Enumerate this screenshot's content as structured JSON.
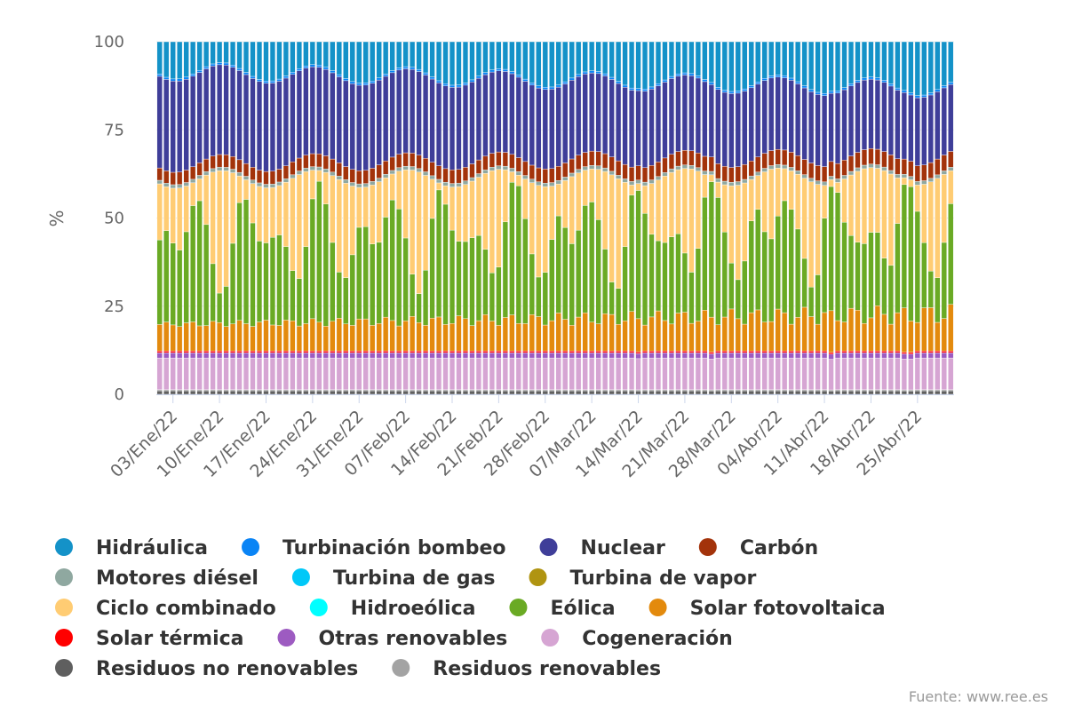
{
  "chart_data": {
    "type": "bar",
    "stacked": true,
    "percent": true,
    "ylabel": "%",
    "ylim": [
      0,
      100
    ],
    "yticks": [
      0,
      25,
      50,
      75,
      100
    ],
    "grid": true,
    "legend_placement": "bottom",
    "credits": "Fuente: www.ree.es",
    "x_tick_labels": [
      "03/Ene/22",
      "10/Ene/22",
      "17/Ene/22",
      "24/Ene/22",
      "31/Ene/22",
      "07/Feb/22",
      "14/Feb/22",
      "21/Feb/22",
      "28/Feb/22",
      "07/Mar/22",
      "14/Mar/22",
      "21/Mar/22",
      "28/Mar/22",
      "04/Abr/22",
      "11/Abr/22",
      "18/Abr/22",
      "25/Abr/22"
    ],
    "x_tick_day_index": [
      2,
      9,
      16,
      23,
      30,
      37,
      44,
      51,
      58,
      65,
      72,
      79,
      86,
      93,
      100,
      107,
      114
    ],
    "day_count": 120,
    "series": [
      {
        "name": "Residuos no renovables",
        "color": "#5f5f5f",
        "constant": 1.0
      },
      {
        "name": "Residuos renovables",
        "color": "#a3a3a3",
        "constant": 0.3
      },
      {
        "name": "Cogeneración",
        "color": "#d6a5d3",
        "constant": 9.0
      },
      {
        "name": "Otras renovables",
        "color": "#9d5bc1",
        "constant": 1.5
      },
      {
        "name": "Solar térmica",
        "color": "#ff0000",
        "constant": 0.5
      },
      {
        "name": "Solar fotovoltaica",
        "color": "#e38a0d",
        "start": 7.5,
        "end": 10.5
      },
      {
        "name": "Eólica",
        "color": "#6aaa24",
        "min": 8.0,
        "max": 40.0
      },
      {
        "name": "Hidroeólica",
        "color": "#00ffff",
        "constant": 0.0
      },
      {
        "name": "Ciclo combinado",
        "color": "#ffcc73",
        "max_value": 28.0
      },
      {
        "name": "Turbina de vapor",
        "color": "#b09411",
        "constant": 0.0
      },
      {
        "name": "Turbina de gas",
        "color": "#00c8f8",
        "constant": 0.0
      },
      {
        "name": "Motores diésel",
        "color": "#8fa8a0",
        "constant": 1.0
      },
      {
        "name": "Carbón",
        "color": "#a3330b",
        "start": 3.5,
        "end": 4.5
      },
      {
        "name": "Nuclear",
        "color": "#3f3e99",
        "start": 26.0,
        "end": 19.0
      },
      {
        "name": "Turbinación bombeo",
        "color": "#0a84f5",
        "constant": 0.6
      },
      {
        "name": "Hidráulica",
        "color": "#1492c8",
        "start": 8.0,
        "end": 13.0
      }
    ],
    "legend_rows": [
      [
        "Hidráulica",
        "Turbinación bombeo",
        "Nuclear",
        "Carbón"
      ],
      [
        "Motores diésel",
        "Turbina de gas",
        "Turbina de vapor"
      ],
      [
        "Ciclo combinado",
        "Hidroeólica",
        "Eólica",
        "Solar fotovoltaica"
      ],
      [
        "Solar térmica",
        "Otras renovables",
        "Cogeneración"
      ],
      [
        "Residuos no renovables",
        "Residuos renovables"
      ]
    ]
  }
}
